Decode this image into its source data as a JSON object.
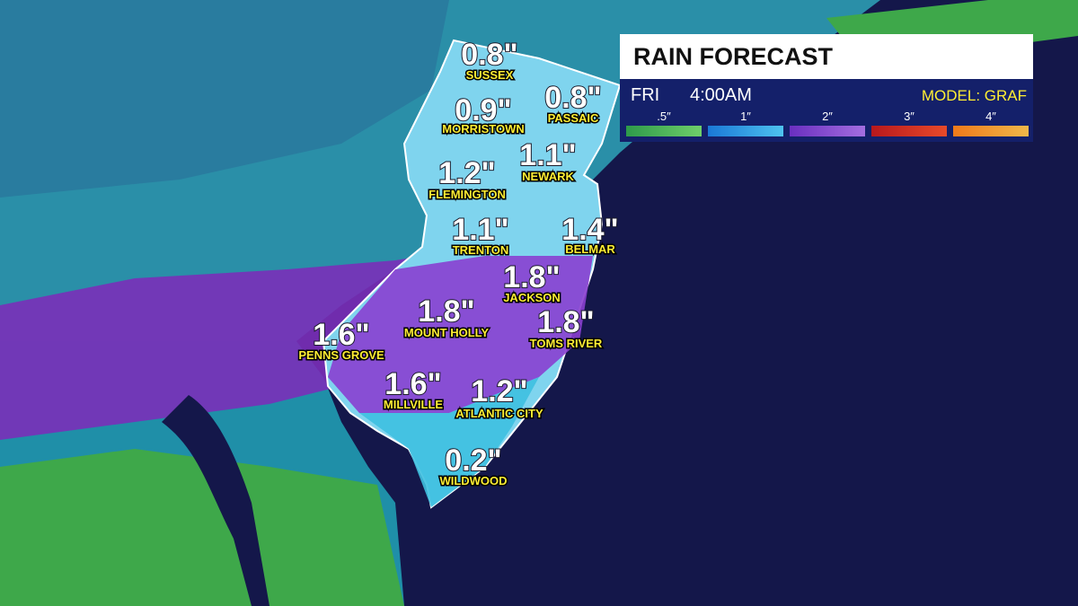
{
  "panel": {
    "title": "RAIN FORECAST",
    "day": "FRI",
    "time": "4:00AM",
    "model": "MODEL: GRAF",
    "legend": [
      ".5″",
      "1″",
      "2″",
      "3″",
      "4″"
    ]
  },
  "locations": [
    {
      "name": "SUSSEX",
      "amount": "0.8\""
    },
    {
      "name": "MORRISTOWN",
      "amount": "0.9\""
    },
    {
      "name": "PASSAIC",
      "amount": "0.8\""
    },
    {
      "name": "NEWARK",
      "amount": "1.1\""
    },
    {
      "name": "FLEMINGTON",
      "amount": "1.2\""
    },
    {
      "name": "TRENTON",
      "amount": "1.1\""
    },
    {
      "name": "BELMAR",
      "amount": "1.4\""
    },
    {
      "name": "JACKSON",
      "amount": "1.8\""
    },
    {
      "name": "MOUNT HOLLY",
      "amount": "1.8\""
    },
    {
      "name": "TOMS RIVER",
      "amount": "1.8\""
    },
    {
      "name": "PENNS GROVE",
      "amount": "1.6\""
    },
    {
      "name": "MILLVILLE",
      "amount": "1.6\""
    },
    {
      "name": "ATLANTIC CITY",
      "amount": "1.2\""
    },
    {
      "name": "WILDWOOD",
      "amount": "0.2\""
    }
  ]
}
